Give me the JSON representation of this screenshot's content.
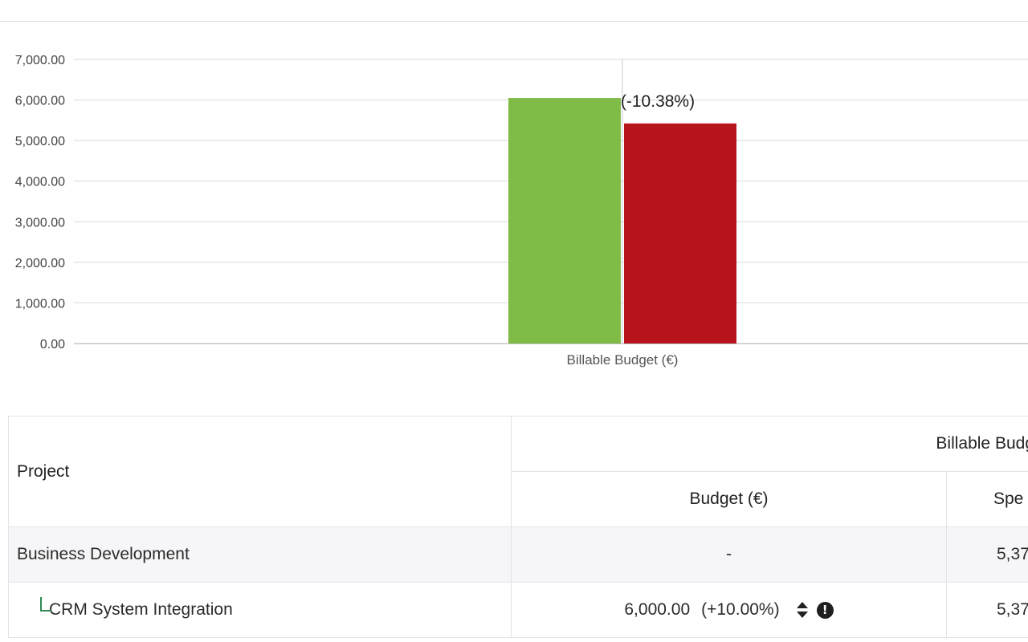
{
  "chart_data": {
    "type": "bar",
    "categories": [
      "Billable Budget (€)"
    ],
    "series": [
      {
        "values": [
          6050
        ],
        "color": "#80bb48"
      },
      {
        "values": [
          5422
        ],
        "color": "#b7131c"
      }
    ],
    "annotations": [
      {
        "series": 1,
        "category": 0,
        "text": "(-10.38%)"
      }
    ],
    "ylim": [
      0,
      7000
    ],
    "yticks": [
      0,
      1000,
      2000,
      3000,
      4000,
      5000,
      6000,
      7000
    ],
    "ytick_labels": [
      "0.00",
      "1,000.00",
      "2,000.00",
      "3,000.00",
      "4,000.00",
      "5,000.00",
      "6,000.00",
      "7,000.00"
    ],
    "grid": true
  },
  "table": {
    "header": {
      "project": "Project",
      "group": "Billable Budget (€",
      "budget": "Budget (€)",
      "spent": "Spe"
    },
    "rows": [
      {
        "project": "Business Development",
        "budget": "-",
        "spent": "5,37"
      },
      {
        "project": "CRM System Integration",
        "budget": "6,000.00",
        "budget_change": "(+10.00%)",
        "spent": "5,37"
      }
    ]
  },
  "icons": {
    "sort": "sort-icon",
    "alert": "exclamation-circle-icon",
    "tree": "tree-branch-icon"
  }
}
